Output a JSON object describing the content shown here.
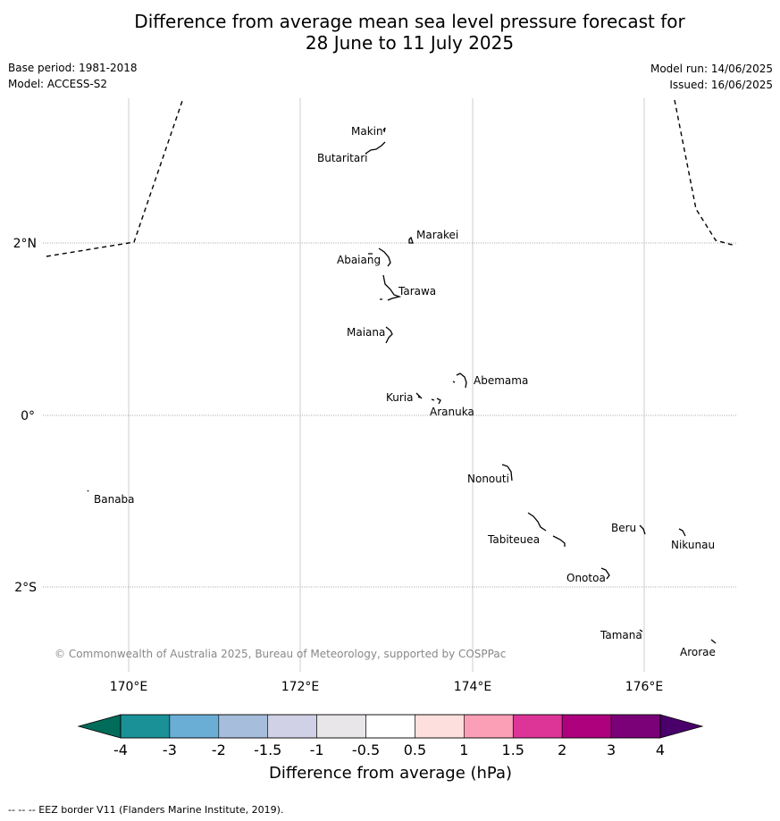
{
  "title_line1": "Difference from average mean sea level pressure forecast for",
  "title_line2": "28 June to 11 July 2025",
  "base_period": "Base period: 1981-2018",
  "model": "Model: ACCESS-S2",
  "model_run": "Model run: 14/06/2025",
  "issued": "Issued: 16/06/2025",
  "copyright": "© Commonwealth of Australia 2025, Bureau of Meteorology, supported by COSPPac",
  "lon_labels": [
    "170°E",
    "172°E",
    "174°E",
    "176°E"
  ],
  "lat_labels": [
    "2°N",
    "0°",
    "2°S"
  ],
  "islands": [
    {
      "name": "Makin"
    },
    {
      "name": "Butaritari"
    },
    {
      "name": "Marakei"
    },
    {
      "name": "Abaiang"
    },
    {
      "name": "Tarawa"
    },
    {
      "name": "Maiana"
    },
    {
      "name": "Abemama"
    },
    {
      "name": "Kuria"
    },
    {
      "name": "Aranuka"
    },
    {
      "name": "Banaba"
    },
    {
      "name": "Nonouti"
    },
    {
      "name": "Beru"
    },
    {
      "name": "Nikunau"
    },
    {
      "name": "Tabiteuea"
    },
    {
      "name": "Onotoa"
    },
    {
      "name": "Tamana"
    },
    {
      "name": "Arorae"
    }
  ],
  "colorbar": {
    "label": "Difference from average (hPa)",
    "ticks": [
      "-4",
      "-3",
      "-2",
      "-1.5",
      "-1",
      "-0.5",
      "0.5",
      "1",
      "1.5",
      "2",
      "3",
      "4"
    ],
    "colors": [
      "#1a9097",
      "#6aaed6",
      "#a6bddb",
      "#d0d1e6",
      "#e8e6e8",
      "#ffffff",
      "#fde0dd",
      "#fa9fb5",
      "#dd3497",
      "#ae017e",
      "#7a0177"
    ],
    "low_extend": "#016c59",
    "high_extend": "#49006a"
  },
  "footnote": "--  --  -- EEZ border V11 (Flanders Marine Institute, 2019)."
}
